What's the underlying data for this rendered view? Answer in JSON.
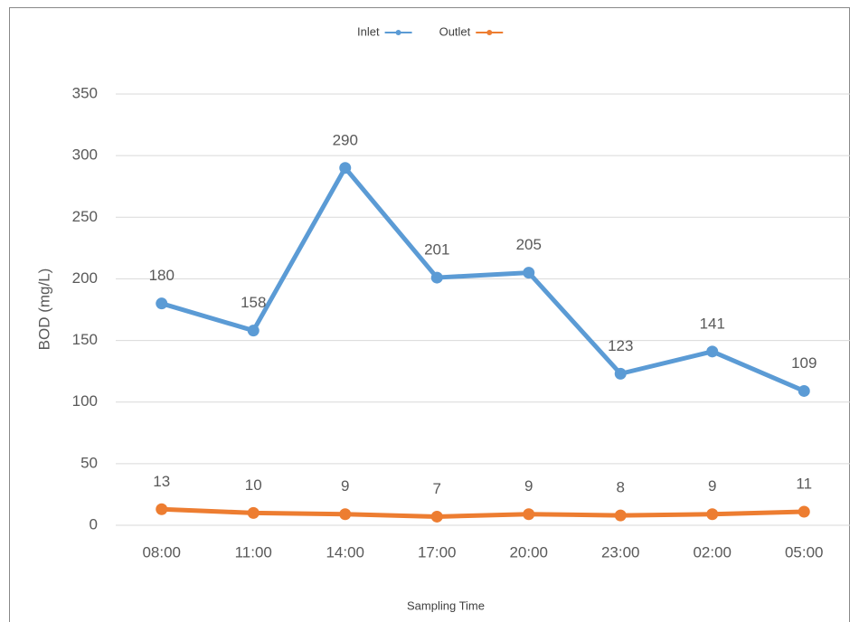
{
  "chart_data": {
    "type": "line",
    "x_label": "Sampling Time",
    "y_label": "BOD (mg/L)",
    "categories": [
      "08:00",
      "11:00",
      "14:00",
      "17:00",
      "20:00",
      "23:00",
      "02:00",
      "05:00"
    ],
    "series": [
      {
        "name": "Inlet",
        "color": "#5b9bd5",
        "values": [
          180,
          158,
          290,
          201,
          205,
          123,
          141,
          109
        ]
      },
      {
        "name": "Outlet",
        "color": "#ed7d31",
        "values": [
          13,
          10,
          9,
          7,
          9,
          8,
          9,
          11
        ]
      }
    ],
    "ylim": [
      0,
      350
    ],
    "yticks": [
      0,
      50,
      100,
      150,
      200,
      250,
      300,
      350
    ],
    "grid": true,
    "legend": "top",
    "data_labels": true
  }
}
